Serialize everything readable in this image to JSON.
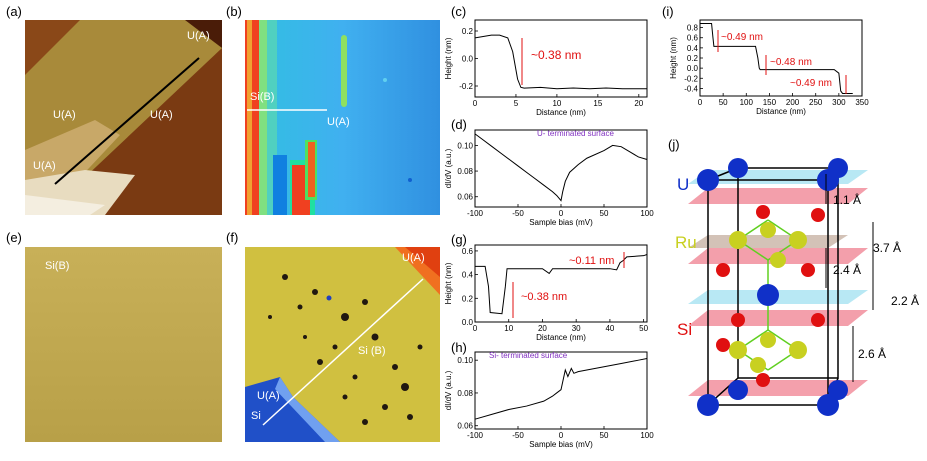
{
  "panels": {
    "a": {
      "label": "(a)",
      "annotations": [
        "U(A)",
        "U(A)",
        "U(A)",
        "U(A)"
      ]
    },
    "b": {
      "label": "(b)",
      "annotations": [
        "Si(B)",
        "U(A)"
      ]
    },
    "c": {
      "label": "(c)",
      "annotation": "~0.38 nm",
      "xlabel": "Distance (nm)",
      "ylabel": "Height (nm)"
    },
    "d": {
      "label": "(d)",
      "annotation": "U- terminated surface",
      "xlabel": "Sample bias (mV)",
      "ylabel": "dI/dV (a.u.)"
    },
    "e": {
      "label": "(e)",
      "annotation": "Si(B)"
    },
    "f": {
      "label": "(f)",
      "annotations": [
        "U(A)",
        "Si (B)",
        "U(A)",
        "Si"
      ]
    },
    "g": {
      "label": "(g)",
      "annotations": [
        "~0.11 nm",
        "~0.38 nm"
      ],
      "xlabel": "Distance (nm)",
      "ylabel": "Height (nm)"
    },
    "h": {
      "label": "(h)",
      "annotation": "Si- terminated surface",
      "xlabel": "Sample bias (mV)",
      "ylabel": "dI/dV (a.u.)"
    },
    "i": {
      "label": "(i)",
      "annotations": [
        "~0.49 nm",
        "~0.48 nm",
        "~0.49 nm"
      ],
      "xlabel": "Distance (nm)",
      "ylabel": "Height (nm)"
    },
    "j": {
      "label": "(j)",
      "atoms": [
        "U",
        "Ru",
        "Si"
      ],
      "dims": [
        "1.1 Å",
        "3.7 Å",
        "2.4 Å",
        "2.2 Å",
        "2.6 Å"
      ]
    }
  },
  "colors": {
    "U": "#1030c8",
    "Ru": "#c8d020",
    "Si": "#e01010",
    "annotation": "#e01010",
    "surface_label": "#8030c0"
  },
  "chart_data": [
    {
      "id": "c",
      "type": "line",
      "xlabel": "Distance (nm)",
      "ylabel": "Height (nm)",
      "xlim": [
        0,
        21
      ],
      "ylim": [
        -0.28,
        0.28
      ],
      "xticks": [
        0,
        5,
        10,
        15,
        20
      ],
      "yticks": [
        -0.2,
        0.0,
        0.2
      ],
      "xtick_labels": [
        "0",
        "5",
        "10",
        "15",
        "20"
      ],
      "ytick_labels": [
        "-0.2",
        "0.0",
        "0.2"
      ],
      "x": [
        0,
        1,
        2,
        3,
        4,
        4.6,
        5.2,
        5.6,
        6,
        8,
        10,
        12,
        14,
        16,
        18,
        20,
        21
      ],
      "y": [
        0.15,
        0.16,
        0.17,
        0.17,
        0.15,
        0.05,
        -0.15,
        -0.21,
        -0.215,
        -0.21,
        -0.22,
        -0.215,
        -0.22,
        -0.215,
        -0.22,
        -0.22,
        -0.22
      ]
    },
    {
      "id": "d",
      "type": "line",
      "xlabel": "Sample bias (mV)",
      "ylabel": "dI/dV (a.u.)",
      "xlim": [
        -100,
        100
      ],
      "ylim": [
        0.052,
        0.112
      ],
      "xticks": [
        -100,
        -50,
        0,
        50,
        100
      ],
      "yticks": [
        0.06,
        0.08,
        0.1
      ],
      "xtick_labels": [
        "-100",
        "-50",
        "0",
        "50",
        "100"
      ],
      "ytick_labels": [
        "0.06",
        "0.08",
        "0.10"
      ],
      "x": [
        -100,
        -90,
        -80,
        -70,
        -60,
        -50,
        -40,
        -30,
        -20,
        -10,
        -5,
        0,
        2,
        5,
        10,
        20,
        30,
        50,
        60,
        70,
        80,
        90,
        100
      ],
      "y": [
        0.109,
        0.104,
        0.099,
        0.094,
        0.089,
        0.084,
        0.079,
        0.074,
        0.069,
        0.064,
        0.061,
        0.057,
        0.064,
        0.072,
        0.079,
        0.085,
        0.09,
        0.096,
        0.1,
        0.099,
        0.095,
        0.091,
        0.089
      ]
    },
    {
      "id": "g",
      "type": "line",
      "xlabel": "Distance (nm)",
      "ylabel": "Height (nm)",
      "xlim": [
        0,
        51
      ],
      "ylim": [
        0,
        0.65
      ],
      "xticks": [
        0,
        10,
        20,
        30,
        40,
        50
      ],
      "yticks": [
        0.0,
        0.2,
        0.4,
        0.6
      ],
      "xtick_labels": [
        "0",
        "10",
        "20",
        "30",
        "40",
        "50"
      ],
      "ytick_labels": [
        "0.0",
        "0.2",
        "0.4",
        "0.6"
      ],
      "x": [
        0,
        3,
        4,
        4.5,
        8,
        9,
        9.5,
        12,
        20,
        22,
        23,
        25,
        30,
        40,
        42,
        43,
        44,
        45,
        50,
        51
      ],
      "y": [
        0.47,
        0.47,
        0.3,
        0.08,
        0.07,
        0.3,
        0.45,
        0.45,
        0.45,
        0.41,
        0.45,
        0.45,
        0.45,
        0.45,
        0.44,
        0.5,
        0.52,
        0.55,
        0.56,
        0.57
      ]
    },
    {
      "id": "h",
      "type": "line",
      "xlabel": "Sample bias (mV)",
      "ylabel": "dI/dV (a.u.)",
      "xlim": [
        -100,
        100
      ],
      "ylim": [
        0.058,
        0.105
      ],
      "xticks": [
        -100,
        -50,
        0,
        50,
        100
      ],
      "yticks": [
        0.06,
        0.08,
        0.1
      ],
      "xtick_labels": [
        "-100",
        "-50",
        "0",
        "50",
        "100"
      ],
      "ytick_labels": [
        "0.06",
        "0.08",
        "0.10"
      ],
      "x": [
        -100,
        -80,
        -60,
        -40,
        -20,
        -10,
        -5,
        0,
        5,
        8,
        12,
        15,
        20,
        30,
        50,
        70,
        90,
        100
      ],
      "y": [
        0.064,
        0.067,
        0.07,
        0.072,
        0.075,
        0.078,
        0.08,
        0.082,
        0.094,
        0.09,
        0.095,
        0.092,
        0.093,
        0.094,
        0.096,
        0.098,
        0.1,
        0.101
      ]
    },
    {
      "id": "i",
      "type": "line",
      "xlabel": "Distance (nm)",
      "ylabel": "Height (nm)",
      "xlim": [
        0,
        350
      ],
      "ylim": [
        -0.55,
        0.95
      ],
      "xticks": [
        0,
        50,
        100,
        150,
        200,
        250,
        300,
        350
      ],
      "yticks": [
        -0.4,
        -0.2,
        0.0,
        0.2,
        0.4,
        0.6,
        0.8
      ],
      "xtick_labels": [
        "0",
        "50",
        "100",
        "150",
        "200",
        "250",
        "300",
        "350"
      ],
      "ytick_labels": [
        "-0.4",
        "-0.2",
        "0.0",
        "0.2",
        "0.4",
        "0.6",
        "0.8"
      ],
      "x": [
        0,
        25,
        28,
        30,
        120,
        125,
        128,
        130,
        290,
        300,
        304,
        308,
        330
      ],
      "y": [
        0.88,
        0.88,
        0.6,
        0.43,
        0.43,
        0.2,
        0.0,
        -0.03,
        -0.03,
        -0.1,
        -0.45,
        -0.5,
        -0.5
      ]
    }
  ]
}
